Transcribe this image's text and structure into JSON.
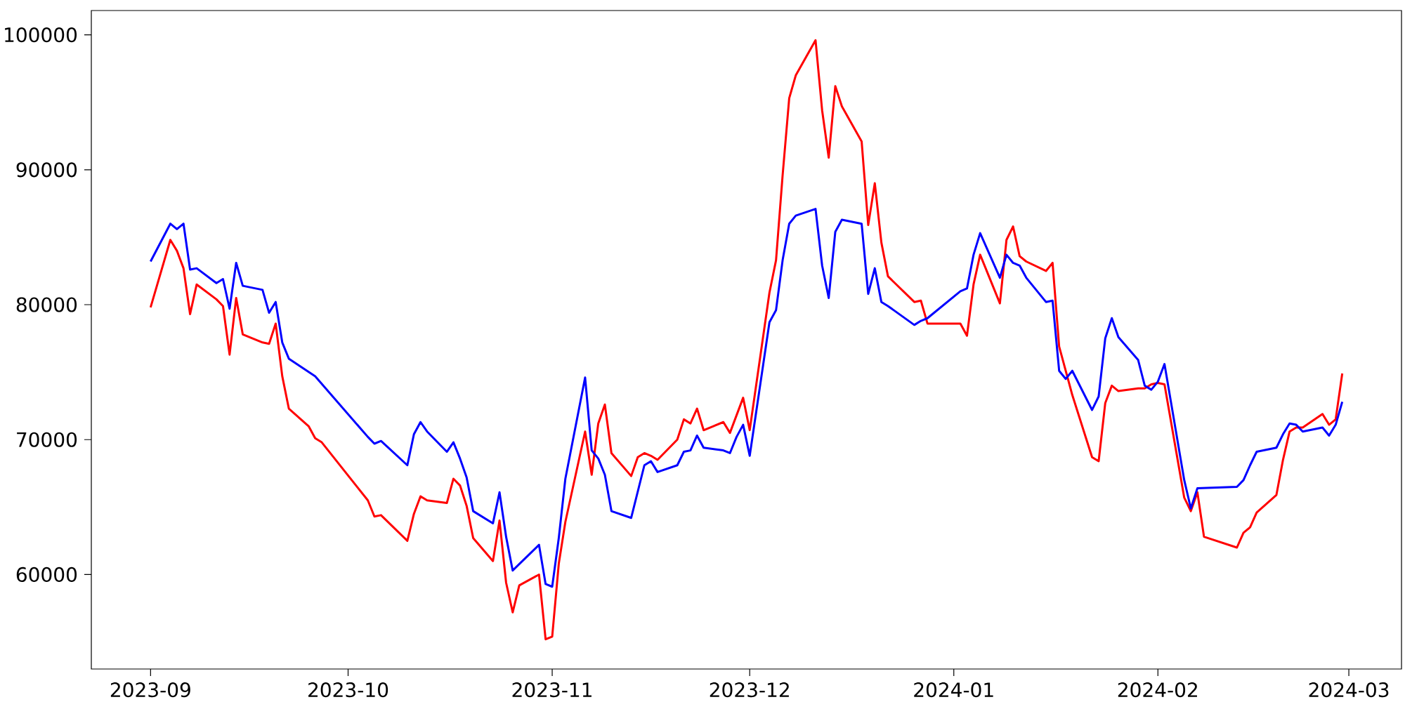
{
  "chart_data": {
    "type": "line",
    "xlim": [
      "2023-08-23",
      "2024-03-09"
    ],
    "xticks": [
      {
        "value": "2023-09-01",
        "label": "2023-09"
      },
      {
        "value": "2023-10-01",
        "label": "2023-10"
      },
      {
        "value": "2023-11-01",
        "label": "2023-11"
      },
      {
        "value": "2023-12-01",
        "label": "2023-12"
      },
      {
        "value": "2024-01-01",
        "label": "2024-01"
      },
      {
        "value": "2024-02-01",
        "label": "2024-02"
      },
      {
        "value": "2024-03-01",
        "label": "2024-03"
      }
    ],
    "ylim": [
      53000,
      101800
    ],
    "yticks": [
      60000,
      70000,
      80000,
      90000,
      100000
    ],
    "series": [
      {
        "color": "#ff0000",
        "x": [
          "2023-09-01",
          "2023-09-04",
          "2023-09-05",
          "2023-09-06",
          "2023-09-07",
          "2023-09-08",
          "2023-09-11",
          "2023-09-12",
          "2023-09-13",
          "2023-09-14",
          "2023-09-15",
          "2023-09-18",
          "2023-09-19",
          "2023-09-20",
          "2023-09-21",
          "2023-09-22",
          "2023-09-25",
          "2023-09-26",
          "2023-09-27",
          "2023-10-04",
          "2023-10-05",
          "2023-10-06",
          "2023-10-10",
          "2023-10-11",
          "2023-10-12",
          "2023-10-13",
          "2023-10-16",
          "2023-10-17",
          "2023-10-18",
          "2023-10-19",
          "2023-10-20",
          "2023-10-23",
          "2023-10-24",
          "2023-10-25",
          "2023-10-26",
          "2023-10-27",
          "2023-10-30",
          "2023-10-31",
          "2023-11-01",
          "2023-11-02",
          "2023-11-03",
          "2023-11-06",
          "2023-11-07",
          "2023-11-08",
          "2023-11-09",
          "2023-11-10",
          "2023-11-13",
          "2023-11-14",
          "2023-11-15",
          "2023-11-16",
          "2023-11-17",
          "2023-11-20",
          "2023-11-21",
          "2023-11-22",
          "2023-11-23",
          "2023-11-24",
          "2023-11-27",
          "2023-11-28",
          "2023-11-30",
          "2023-12-01",
          "2023-12-04",
          "2023-12-05",
          "2023-12-06",
          "2023-12-07",
          "2023-12-08",
          "2023-12-11",
          "2023-12-12",
          "2023-12-13",
          "2023-12-14",
          "2023-12-15",
          "2023-12-18",
          "2023-12-19",
          "2023-12-20",
          "2023-12-21",
          "2023-12-22",
          "2023-12-26",
          "2023-12-27",
          "2023-12-28",
          "2024-01-02",
          "2024-01-03",
          "2024-01-04",
          "2024-01-05",
          "2024-01-08",
          "2024-01-09",
          "2024-01-10",
          "2024-01-11",
          "2024-01-12",
          "2024-01-15",
          "2024-01-16",
          "2024-01-17",
          "2024-01-19",
          "2024-01-22",
          "2024-01-23",
          "2024-01-24",
          "2024-01-25",
          "2024-01-26",
          "2024-01-29",
          "2024-01-30",
          "2024-01-31",
          "2024-02-01",
          "2024-02-02",
          "2024-02-05",
          "2024-02-06",
          "2024-02-07",
          "2024-02-08",
          "2024-02-13",
          "2024-02-14",
          "2024-02-15",
          "2024-02-16",
          "2024-02-19",
          "2024-02-20",
          "2024-02-21",
          "2024-02-22",
          "2024-02-23",
          "2024-02-26",
          "2024-02-27",
          "2024-02-28",
          "2024-02-29"
        ],
        "values": [
          79800,
          84800,
          84000,
          82700,
          79300,
          81500,
          80400,
          79900,
          76300,
          80500,
          77800,
          77200,
          77100,
          78600,
          74700,
          72300,
          71000,
          70100,
          69800,
          65500,
          64300,
          64400,
          62500,
          64500,
          65800,
          65500,
          65300,
          67100,
          66600,
          65100,
          62700,
          61000,
          64000,
          59400,
          57200,
          59200,
          60000,
          55200,
          55400,
          60800,
          63900,
          70600,
          67400,
          71200,
          72600,
          69000,
          67300,
          68700,
          69000,
          68800,
          68500,
          70000,
          71500,
          71200,
          72300,
          70700,
          71300,
          70500,
          73100,
          70700,
          80900,
          83300,
          89600,
          95300,
          97000,
          99600,
          94400,
          90900,
          96200,
          94700,
          92100,
          85900,
          89000,
          84600,
          82100,
          80200,
          80300,
          78600,
          78600,
          77700,
          81500,
          83700,
          80100,
          84800,
          85800,
          83600,
          83200,
          82500,
          83100,
          76900,
          73300,
          68700,
          68400,
          72700,
          74000,
          73600,
          73800,
          73800,
          74100,
          74200,
          74100,
          65700,
          64700,
          66100,
          62800,
          62000,
          63100,
          63500,
          64600,
          65900,
          68500,
          70600,
          70900,
          70900,
          71900,
          71100,
          71500,
          74900
        ]
      },
      {
        "color": "#0000ff",
        "x": [
          "2023-09-01",
          "2023-09-04",
          "2023-09-05",
          "2023-09-06",
          "2023-09-07",
          "2023-09-08",
          "2023-09-11",
          "2023-09-12",
          "2023-09-13",
          "2023-09-14",
          "2023-09-15",
          "2023-09-18",
          "2023-09-19",
          "2023-09-20",
          "2023-09-21",
          "2023-09-22",
          "2023-09-26",
          "2023-10-04",
          "2023-10-05",
          "2023-10-06",
          "2023-10-10",
          "2023-10-11",
          "2023-10-12",
          "2023-10-13",
          "2023-10-16",
          "2023-10-17",
          "2023-10-18",
          "2023-10-19",
          "2023-10-20",
          "2023-10-23",
          "2023-10-24",
          "2023-10-25",
          "2023-10-26",
          "2023-10-30",
          "2023-10-31",
          "2023-11-01",
          "2023-11-02",
          "2023-11-03",
          "2023-11-06",
          "2023-11-07",
          "2023-11-08",
          "2023-11-09",
          "2023-11-10",
          "2023-11-13",
          "2023-11-15",
          "2023-11-16",
          "2023-11-17",
          "2023-11-20",
          "2023-11-21",
          "2023-11-22",
          "2023-11-23",
          "2023-11-24",
          "2023-11-27",
          "2023-11-28",
          "2023-11-29",
          "2023-11-30",
          "2023-12-01",
          "2023-12-04",
          "2023-12-05",
          "2023-12-06",
          "2023-12-07",
          "2023-12-08",
          "2023-12-11",
          "2023-12-12",
          "2023-12-13",
          "2023-12-14",
          "2023-12-15",
          "2023-12-18",
          "2023-12-19",
          "2023-12-20",
          "2023-12-21",
          "2023-12-22",
          "2023-12-26",
          "2023-12-27",
          "2023-12-28",
          "2024-01-02",
          "2024-01-03",
          "2024-01-04",
          "2024-01-05",
          "2024-01-08",
          "2024-01-09",
          "2024-01-10",
          "2024-01-11",
          "2024-01-12",
          "2024-01-15",
          "2024-01-16",
          "2024-01-17",
          "2024-01-18",
          "2024-01-19",
          "2024-01-22",
          "2024-01-23",
          "2024-01-24",
          "2024-01-25",
          "2024-01-26",
          "2024-01-29",
          "2024-01-30",
          "2024-01-31",
          "2024-02-01",
          "2024-02-02",
          "2024-02-05",
          "2024-02-06",
          "2024-02-07",
          "2024-02-13",
          "2024-02-14",
          "2024-02-15",
          "2024-02-16",
          "2024-02-19",
          "2024-02-20",
          "2024-02-21",
          "2024-02-22",
          "2024-02-23",
          "2024-02-26",
          "2024-02-27",
          "2024-02-28",
          "2024-02-29"
        ],
        "values": [
          83200,
          86000,
          85600,
          86000,
          82600,
          82700,
          81600,
          81900,
          79700,
          83100,
          81400,
          81100,
          79400,
          80200,
          77200,
          76000,
          74700,
          70200,
          69700,
          69900,
          68100,
          70400,
          71300,
          70600,
          69100,
          69800,
          68600,
          67200,
          64700,
          63800,
          66100,
          62800,
          60300,
          62200,
          59300,
          59100,
          62700,
          67100,
          74600,
          69200,
          68600,
          67400,
          64700,
          64200,
          68100,
          68400,
          67600,
          68100,
          69100,
          69200,
          70300,
          69400,
          69200,
          69000,
          70200,
          71100,
          68800,
          78700,
          79600,
          83300,
          86000,
          86600,
          87100,
          82900,
          80500,
          85400,
          86300,
          86000,
          80800,
          82700,
          80200,
          79900,
          78500,
          78800,
          79000,
          81000,
          81200,
          83700,
          85300,
          82000,
          83700,
          83100,
          82900,
          82000,
          80200,
          80300,
          75100,
          74500,
          75100,
          72200,
          73200,
          77500,
          79000,
          77600,
          75900,
          74000,
          73700,
          74300,
          75600,
          67000,
          64900,
          66400,
          66500,
          67000,
          68100,
          69100,
          69400,
          70400,
          71200,
          71100,
          70600,
          70900,
          70300,
          71100,
          72800
        ]
      }
    ]
  }
}
